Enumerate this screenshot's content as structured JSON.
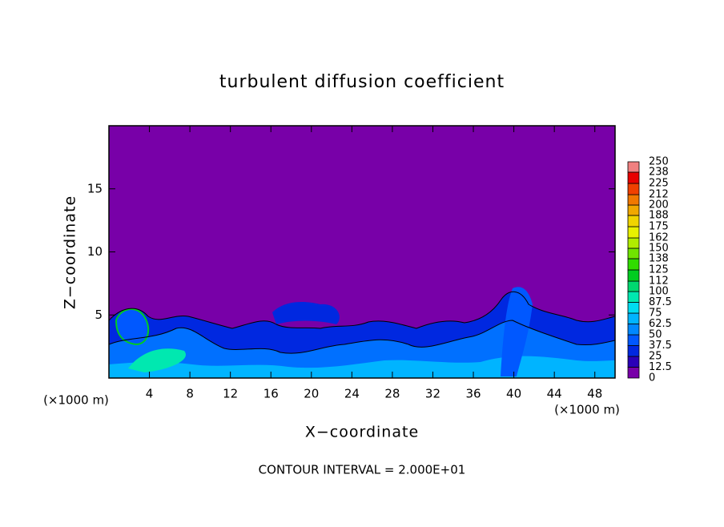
{
  "chart_data": {
    "type": "contour",
    "title": "turbulent diffusion coefficient",
    "xlabel": "X−coordinate",
    "ylabel": "Z−coordinate",
    "x_unit": "(×1000 m)",
    "y_unit": "(×1000 m)",
    "footnote": "CONTOUR INTERVAL = 2.000E+01",
    "xlim": [
      0,
      50
    ],
    "ylim": [
      0,
      20
    ],
    "xticks": [
      4,
      8,
      12,
      16,
      20,
      24,
      28,
      32,
      36,
      40,
      44,
      48
    ],
    "yticks": [
      5,
      10,
      15
    ],
    "colorbar": {
      "ticks": [
        0,
        12.5,
        25,
        37.5,
        50,
        62.5,
        75,
        87.5,
        100,
        112,
        125,
        138,
        150,
        162,
        175,
        188,
        200,
        212,
        225,
        238,
        250
      ],
      "colors": [
        "#7800a8",
        "#2a00b8",
        "#0028e0",
        "#0058ff",
        "#0088ff",
        "#00b4ff",
        "#00dcf0",
        "#00e8b0",
        "#00d870",
        "#00cc20",
        "#30dc00",
        "#70e400",
        "#b0ec00",
        "#e8f000",
        "#f0d400",
        "#f0a800",
        "#f07800",
        "#f04000",
        "#e80000",
        "#f08080"
      ]
    }
  }
}
